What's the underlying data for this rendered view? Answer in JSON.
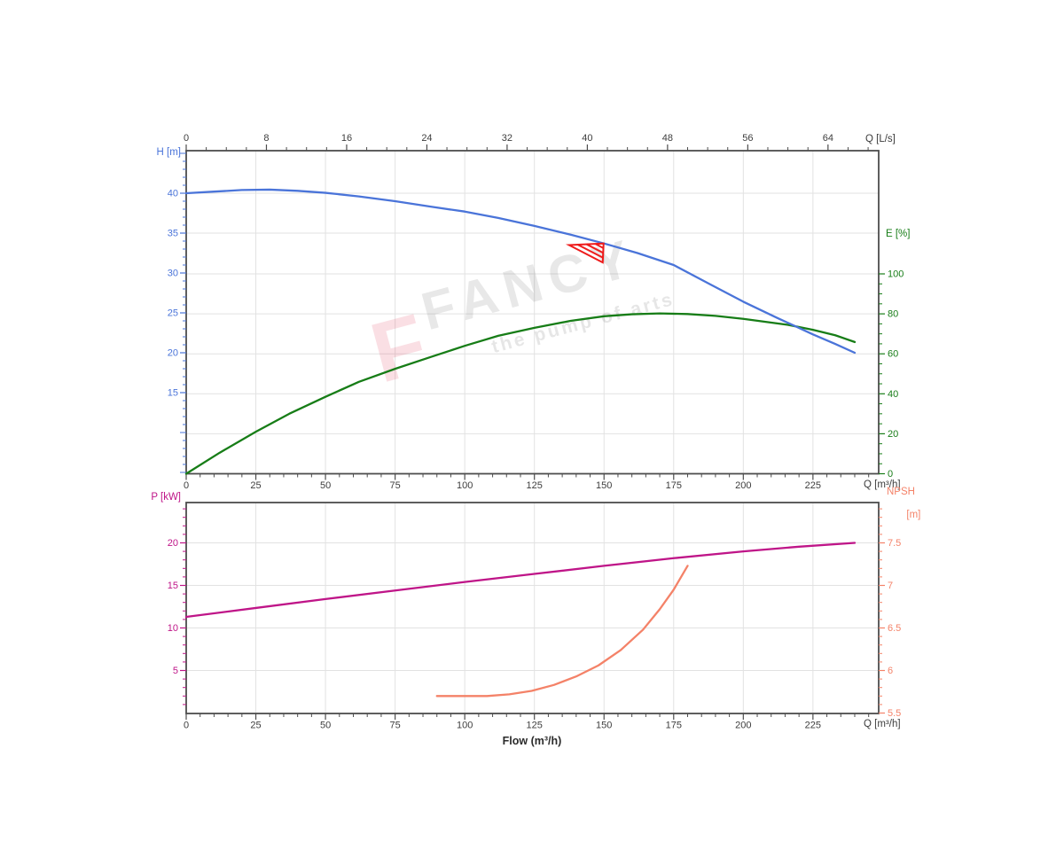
{
  "watermark": {
    "logo_letter": "F",
    "brand": "FANCY",
    "tagline": "the pump of arts"
  },
  "labels": {
    "flow_axis_title": "Flow (m³/h)"
  },
  "colors": {
    "head_curve": "#4a74d9",
    "efficiency_curve": "#177d17",
    "power_curve": "#bf1588",
    "npsh_curve": "#f48268",
    "duty_marker": "#ee1c1c",
    "axis_line": "#4d4d4d",
    "grid_line": "#e2e2e2",
    "tick_text_dark": "#3d3d3d"
  },
  "chart_data": [
    {
      "type": "line",
      "title": "",
      "grid": true,
      "axes": {
        "x_top": {
          "label": "Q [L/s]",
          "range": [
            0,
            69.05
          ],
          "ticks": [
            0,
            8,
            16,
            24,
            32,
            40,
            48,
            56,
            64
          ],
          "minor_step": 2,
          "color": "#3d3d3d"
        },
        "x_bottom": {
          "label": "Q [m³/h]",
          "range": [
            0,
            248.6
          ],
          "ticks": [
            0,
            25,
            50,
            75,
            100,
            125,
            150,
            175,
            200,
            225
          ],
          "minor_step": 5,
          "color": "#3d3d3d"
        },
        "y_left": {
          "label": "H [m]",
          "range": [
            4.8,
            45.3
          ],
          "ticks": [
            15,
            20,
            25,
            30,
            35,
            40
          ],
          "minor_step": 1,
          "color": "#4a74d9"
        },
        "y_right": {
          "label": "E [%]",
          "range": [
            0,
            161.6
          ],
          "ticks": [
            0,
            20,
            40,
            60,
            80,
            100
          ],
          "minor_step": 5,
          "color": "#177d17"
        }
      },
      "series": [
        {
          "name": "head",
          "label": "H",
          "y_axis": "left",
          "color": "#4a74d9",
          "points": [
            [
              0,
              40.0
            ],
            [
              10,
              40.2
            ],
            [
              20,
              40.4
            ],
            [
              30,
              40.45
            ],
            [
              40,
              40.3
            ],
            [
              50,
              40.05
            ],
            [
              62,
              39.6
            ],
            [
              75,
              39.0
            ],
            [
              88,
              38.3
            ],
            [
              100,
              37.7
            ],
            [
              112,
              36.9
            ],
            [
              125,
              35.9
            ],
            [
              138,
              34.8
            ],
            [
              150,
              33.7
            ],
            [
              162,
              32.5
            ],
            [
              175,
              31.0
            ],
            [
              188,
              28.6
            ],
            [
              200,
              26.4
            ],
            [
              212,
              24.4
            ],
            [
              225,
              22.3
            ],
            [
              233,
              21.1
            ],
            [
              240,
              20.0
            ]
          ]
        },
        {
          "name": "efficiency",
          "label": "E",
          "y_axis": "right",
          "color": "#177d17",
          "points": [
            [
              0,
              0
            ],
            [
              12,
              10.5
            ],
            [
              25,
              21
            ],
            [
              37,
              30
            ],
            [
              50,
              38.5
            ],
            [
              62,
              46
            ],
            [
              75,
              52.5
            ],
            [
              88,
              58.5
            ],
            [
              100,
              64
            ],
            [
              112,
              69
            ],
            [
              125,
              73
            ],
            [
              138,
              76.5
            ],
            [
              150,
              78.8
            ],
            [
              160,
              79.8
            ],
            [
              170,
              80.2
            ],
            [
              180,
              79.9
            ],
            [
              190,
              79.0
            ],
            [
              200,
              77.5
            ],
            [
              216,
              74.5
            ],
            [
              225,
              72.0
            ],
            [
              233,
              69.3
            ],
            [
              240,
              65.9
            ]
          ]
        }
      ],
      "duty_point": {
        "q": 150,
        "h": 33.7,
        "marker": "hatched-flag-triangle",
        "color": "#ee1c1c"
      }
    },
    {
      "type": "line",
      "title": "",
      "grid": true,
      "xlabel": "Flow (m³/h)",
      "axes": {
        "x_bottom": {
          "label": "Q [m³/h]",
          "range": [
            0,
            248.6
          ],
          "ticks": [
            0,
            25,
            50,
            75,
            100,
            125,
            150,
            175,
            200,
            225
          ],
          "minor_step": 5,
          "color": "#3d3d3d"
        },
        "y_left": {
          "label": "P [kW]",
          "range": [
            0,
            24.7
          ],
          "ticks": [
            5,
            10,
            15,
            20
          ],
          "minor_step": 1,
          "color": "#bf1588"
        },
        "y_right": {
          "label": "NPSH",
          "label2": "[m]",
          "range": [
            5.5,
            7.97
          ],
          "ticks": [
            5.5,
            6,
            6.5,
            7,
            7.5
          ],
          "minor_step": 0.1,
          "color": "#f48268"
        }
      },
      "series": [
        {
          "name": "power",
          "label": "P",
          "y_axis": "left",
          "color": "#bf1588",
          "points": [
            [
              0,
              11.3
            ],
            [
              25,
              12.35
            ],
            [
              50,
              13.4
            ],
            [
              75,
              14.4
            ],
            [
              100,
              15.4
            ],
            [
              125,
              16.35
            ],
            [
              150,
              17.3
            ],
            [
              175,
              18.2
            ],
            [
              200,
              19.0
            ],
            [
              220,
              19.55
            ],
            [
              240,
              20.0
            ]
          ]
        },
        {
          "name": "npsh",
          "label": "NPSH",
          "y_axis": "right",
          "color": "#f48268",
          "points": [
            [
              90,
              5.7
            ],
            [
              100,
              5.7
            ],
            [
              108,
              5.7
            ],
            [
              116,
              5.72
            ],
            [
              124,
              5.76
            ],
            [
              132,
              5.83
            ],
            [
              140,
              5.93
            ],
            [
              148,
              6.06
            ],
            [
              156,
              6.24
            ],
            [
              164,
              6.48
            ],
            [
              170,
              6.72
            ],
            [
              175,
              6.95
            ],
            [
              180,
              7.23
            ]
          ]
        }
      ]
    }
  ]
}
